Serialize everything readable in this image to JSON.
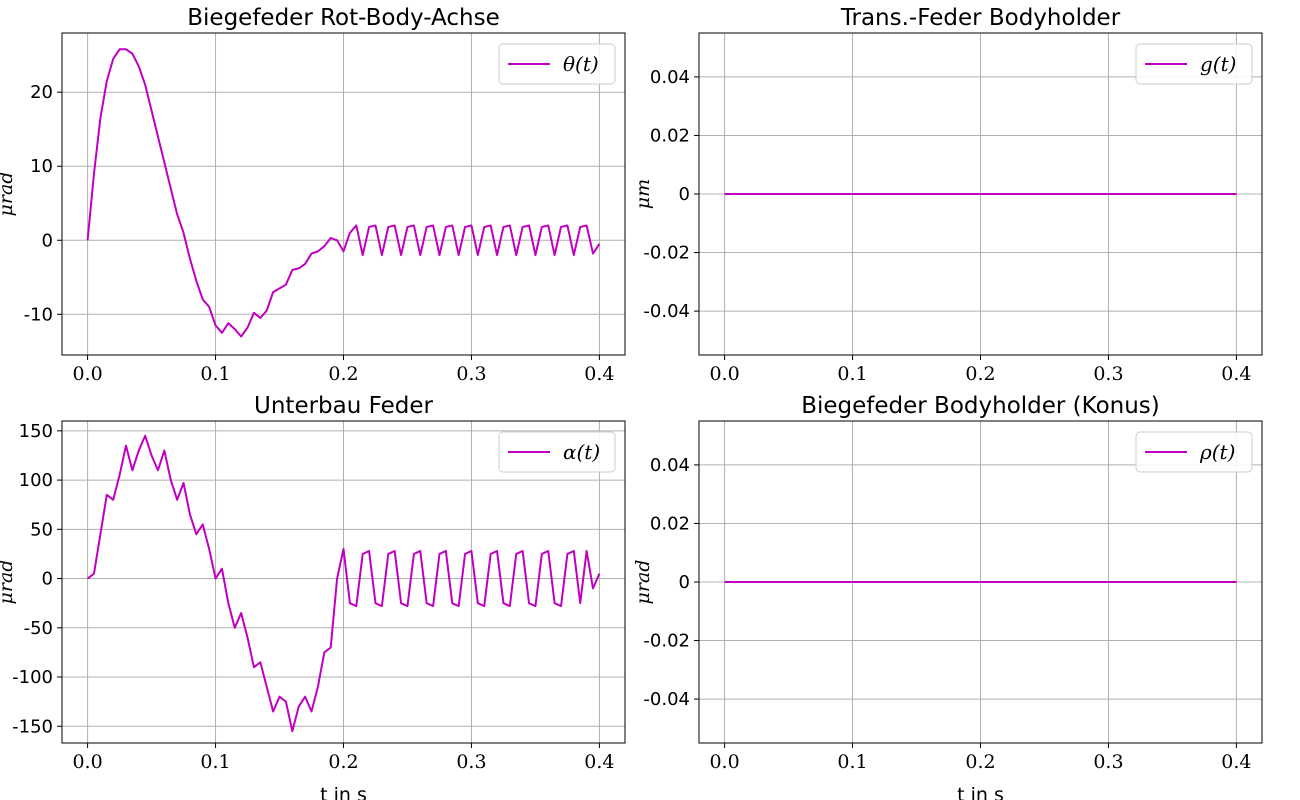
{
  "colors": {
    "line": "#c000c0",
    "grid": "#b0b0b0",
    "legend_border": "#cccccc"
  },
  "chart_data": [
    {
      "type": "line",
      "title": "Biegefeder Rot-Body-Achse",
      "ylabel": "μrad",
      "xlabel": "",
      "xlim": [
        -0.02,
        0.42
      ],
      "ylim": [
        -15.5,
        28
      ],
      "xticks": [
        0.0,
        0.1,
        0.2,
        0.3,
        0.4
      ],
      "xtick_labels": [
        "0.0",
        "0.1",
        "0.2",
        "0.3",
        "0.4"
      ],
      "yticks": [
        20,
        10,
        0,
        -10
      ],
      "ytick_labels": [
        "20",
        "10",
        "0",
        "-10"
      ],
      "grid": true,
      "legend_position": "upper right",
      "series": [
        {
          "name": "θ(t)",
          "x": [
            0.0,
            0.005,
            0.01,
            0.015,
            0.02,
            0.025,
            0.03,
            0.035,
            0.04,
            0.045,
            0.05,
            0.055,
            0.06,
            0.065,
            0.07,
            0.075,
            0.08,
            0.085,
            0.09,
            0.095,
            0.1,
            0.105,
            0.11,
            0.115,
            0.12,
            0.125,
            0.13,
            0.135,
            0.14,
            0.145,
            0.15,
            0.155,
            0.16,
            0.165,
            0.17,
            0.175,
            0.18,
            0.185,
            0.19,
            0.195,
            0.2,
            0.205,
            0.21,
            0.215,
            0.22,
            0.225,
            0.23,
            0.235,
            0.24,
            0.245,
            0.25,
            0.255,
            0.26,
            0.265,
            0.27,
            0.275,
            0.28,
            0.285,
            0.29,
            0.295,
            0.3,
            0.305,
            0.31,
            0.315,
            0.32,
            0.325,
            0.33,
            0.335,
            0.34,
            0.345,
            0.35,
            0.355,
            0.36,
            0.365,
            0.37,
            0.375,
            0.38,
            0.385,
            0.39,
            0.395,
            0.4
          ],
          "values": [
            0,
            9,
            16.5,
            21.5,
            24.5,
            25.8,
            25.8,
            25.2,
            23.5,
            21,
            17.5,
            14,
            10.5,
            7,
            3.5,
            1,
            -2.5,
            -5.5,
            -8,
            -9,
            -11.5,
            -12.5,
            -11.2,
            -12,
            -13,
            -11.8,
            -9.8,
            -10.5,
            -9.5,
            -7,
            -6.5,
            -6,
            -4,
            -3.8,
            -3.2,
            -1.8,
            -1.5,
            -0.8,
            0.3,
            0,
            -1.5,
            1,
            2,
            -2,
            1.8,
            2,
            -2,
            1.8,
            2,
            -2,
            1.8,
            2,
            -2,
            1.8,
            2,
            -2,
            1.8,
            2,
            -2,
            1.8,
            2,
            -2,
            1.8,
            2,
            -2,
            1.8,
            2,
            -2,
            1.8,
            2,
            -2,
            1.8,
            2,
            -2,
            1.8,
            2,
            -2,
            1.8,
            2,
            -1.8,
            -0.5
          ]
        }
      ]
    },
    {
      "type": "line",
      "title": "Trans.-Feder Bodyholder",
      "ylabel": "μm",
      "xlabel": "",
      "xlim": [
        -0.02,
        0.42
      ],
      "ylim": [
        -0.055,
        0.055
      ],
      "xticks": [
        0.0,
        0.1,
        0.2,
        0.3,
        0.4
      ],
      "xtick_labels": [
        "0.0",
        "0.1",
        "0.2",
        "0.3",
        "0.4"
      ],
      "yticks": [
        0.04,
        0.02,
        0,
        -0.02,
        -0.04
      ],
      "ytick_labels": [
        "0.04",
        "0.02",
        "0",
        "-0.02",
        "-0.04"
      ],
      "grid": true,
      "legend_position": "upper right",
      "series": [
        {
          "name": "g(t)",
          "x": [
            0.0,
            0.4
          ],
          "values": [
            0,
            0
          ]
        }
      ]
    },
    {
      "type": "line",
      "title": "Unterbau Feder",
      "ylabel": "μrad",
      "xlabel": "t in s",
      "xlim": [
        -0.02,
        0.42
      ],
      "ylim": [
        -167,
        160
      ],
      "xticks": [
        0.0,
        0.1,
        0.2,
        0.3,
        0.4
      ],
      "xtick_labels": [
        "0.0",
        "0.1",
        "0.2",
        "0.3",
        "0.4"
      ],
      "yticks": [
        150,
        100,
        50,
        0,
        -50,
        -100,
        -150
      ],
      "ytick_labels": [
        "150",
        "100",
        "50",
        "0",
        "-50",
        "-100",
        "-150"
      ],
      "grid": true,
      "legend_position": "upper right",
      "series": [
        {
          "name": "α(t)",
          "x": [
            0.0,
            0.005,
            0.01,
            0.015,
            0.02,
            0.025,
            0.03,
            0.035,
            0.04,
            0.045,
            0.05,
            0.055,
            0.06,
            0.065,
            0.07,
            0.075,
            0.08,
            0.085,
            0.09,
            0.095,
            0.1,
            0.105,
            0.11,
            0.115,
            0.12,
            0.125,
            0.13,
            0.135,
            0.14,
            0.145,
            0.15,
            0.155,
            0.16,
            0.165,
            0.17,
            0.175,
            0.18,
            0.185,
            0.19,
            0.195,
            0.2,
            0.205,
            0.21,
            0.215,
            0.22,
            0.225,
            0.23,
            0.235,
            0.24,
            0.245,
            0.25,
            0.255,
            0.26,
            0.265,
            0.27,
            0.275,
            0.28,
            0.285,
            0.29,
            0.295,
            0.3,
            0.305,
            0.31,
            0.315,
            0.32,
            0.325,
            0.33,
            0.335,
            0.34,
            0.345,
            0.35,
            0.355,
            0.36,
            0.365,
            0.37,
            0.375,
            0.38,
            0.385,
            0.39,
            0.395,
            0.4
          ],
          "values": [
            0,
            5,
            45,
            85,
            80,
            105,
            135,
            110,
            130,
            145,
            125,
            110,
            130,
            100,
            80,
            97,
            65,
            45,
            55,
            30,
            0,
            10,
            -25,
            -50,
            -35,
            -60,
            -90,
            -85,
            -110,
            -135,
            -120,
            -125,
            -155,
            -130,
            -120,
            -135,
            -110,
            -75,
            -70,
            0,
            30,
            -25,
            -28,
            25,
            28,
            -25,
            -28,
            25,
            28,
            -25,
            -28,
            25,
            28,
            -25,
            -28,
            25,
            28,
            -25,
            -28,
            25,
            28,
            -25,
            -28,
            25,
            28,
            -25,
            -28,
            25,
            28,
            -25,
            -28,
            25,
            28,
            -25,
            -28,
            25,
            28,
            -25,
            28,
            -10,
            5
          ]
        }
      ]
    },
    {
      "type": "line",
      "title": "Biegefeder Bodyholder (Konus)",
      "ylabel": "μrad",
      "xlabel": "t in s",
      "xlim": [
        -0.02,
        0.42
      ],
      "ylim": [
        -0.055,
        0.055
      ],
      "xticks": [
        0.0,
        0.1,
        0.2,
        0.3,
        0.4
      ],
      "xtick_labels": [
        "0.0",
        "0.1",
        "0.2",
        "0.3",
        "0.4"
      ],
      "yticks": [
        0.04,
        0.02,
        0,
        -0.02,
        -0.04
      ],
      "ytick_labels": [
        "0.04",
        "0.02",
        "0",
        "-0.02",
        "-0.04"
      ],
      "grid": true,
      "legend_position": "upper right",
      "series": [
        {
          "name": "ρ(t)",
          "x": [
            0.0,
            0.4
          ],
          "values": [
            0,
            0
          ]
        }
      ]
    }
  ]
}
